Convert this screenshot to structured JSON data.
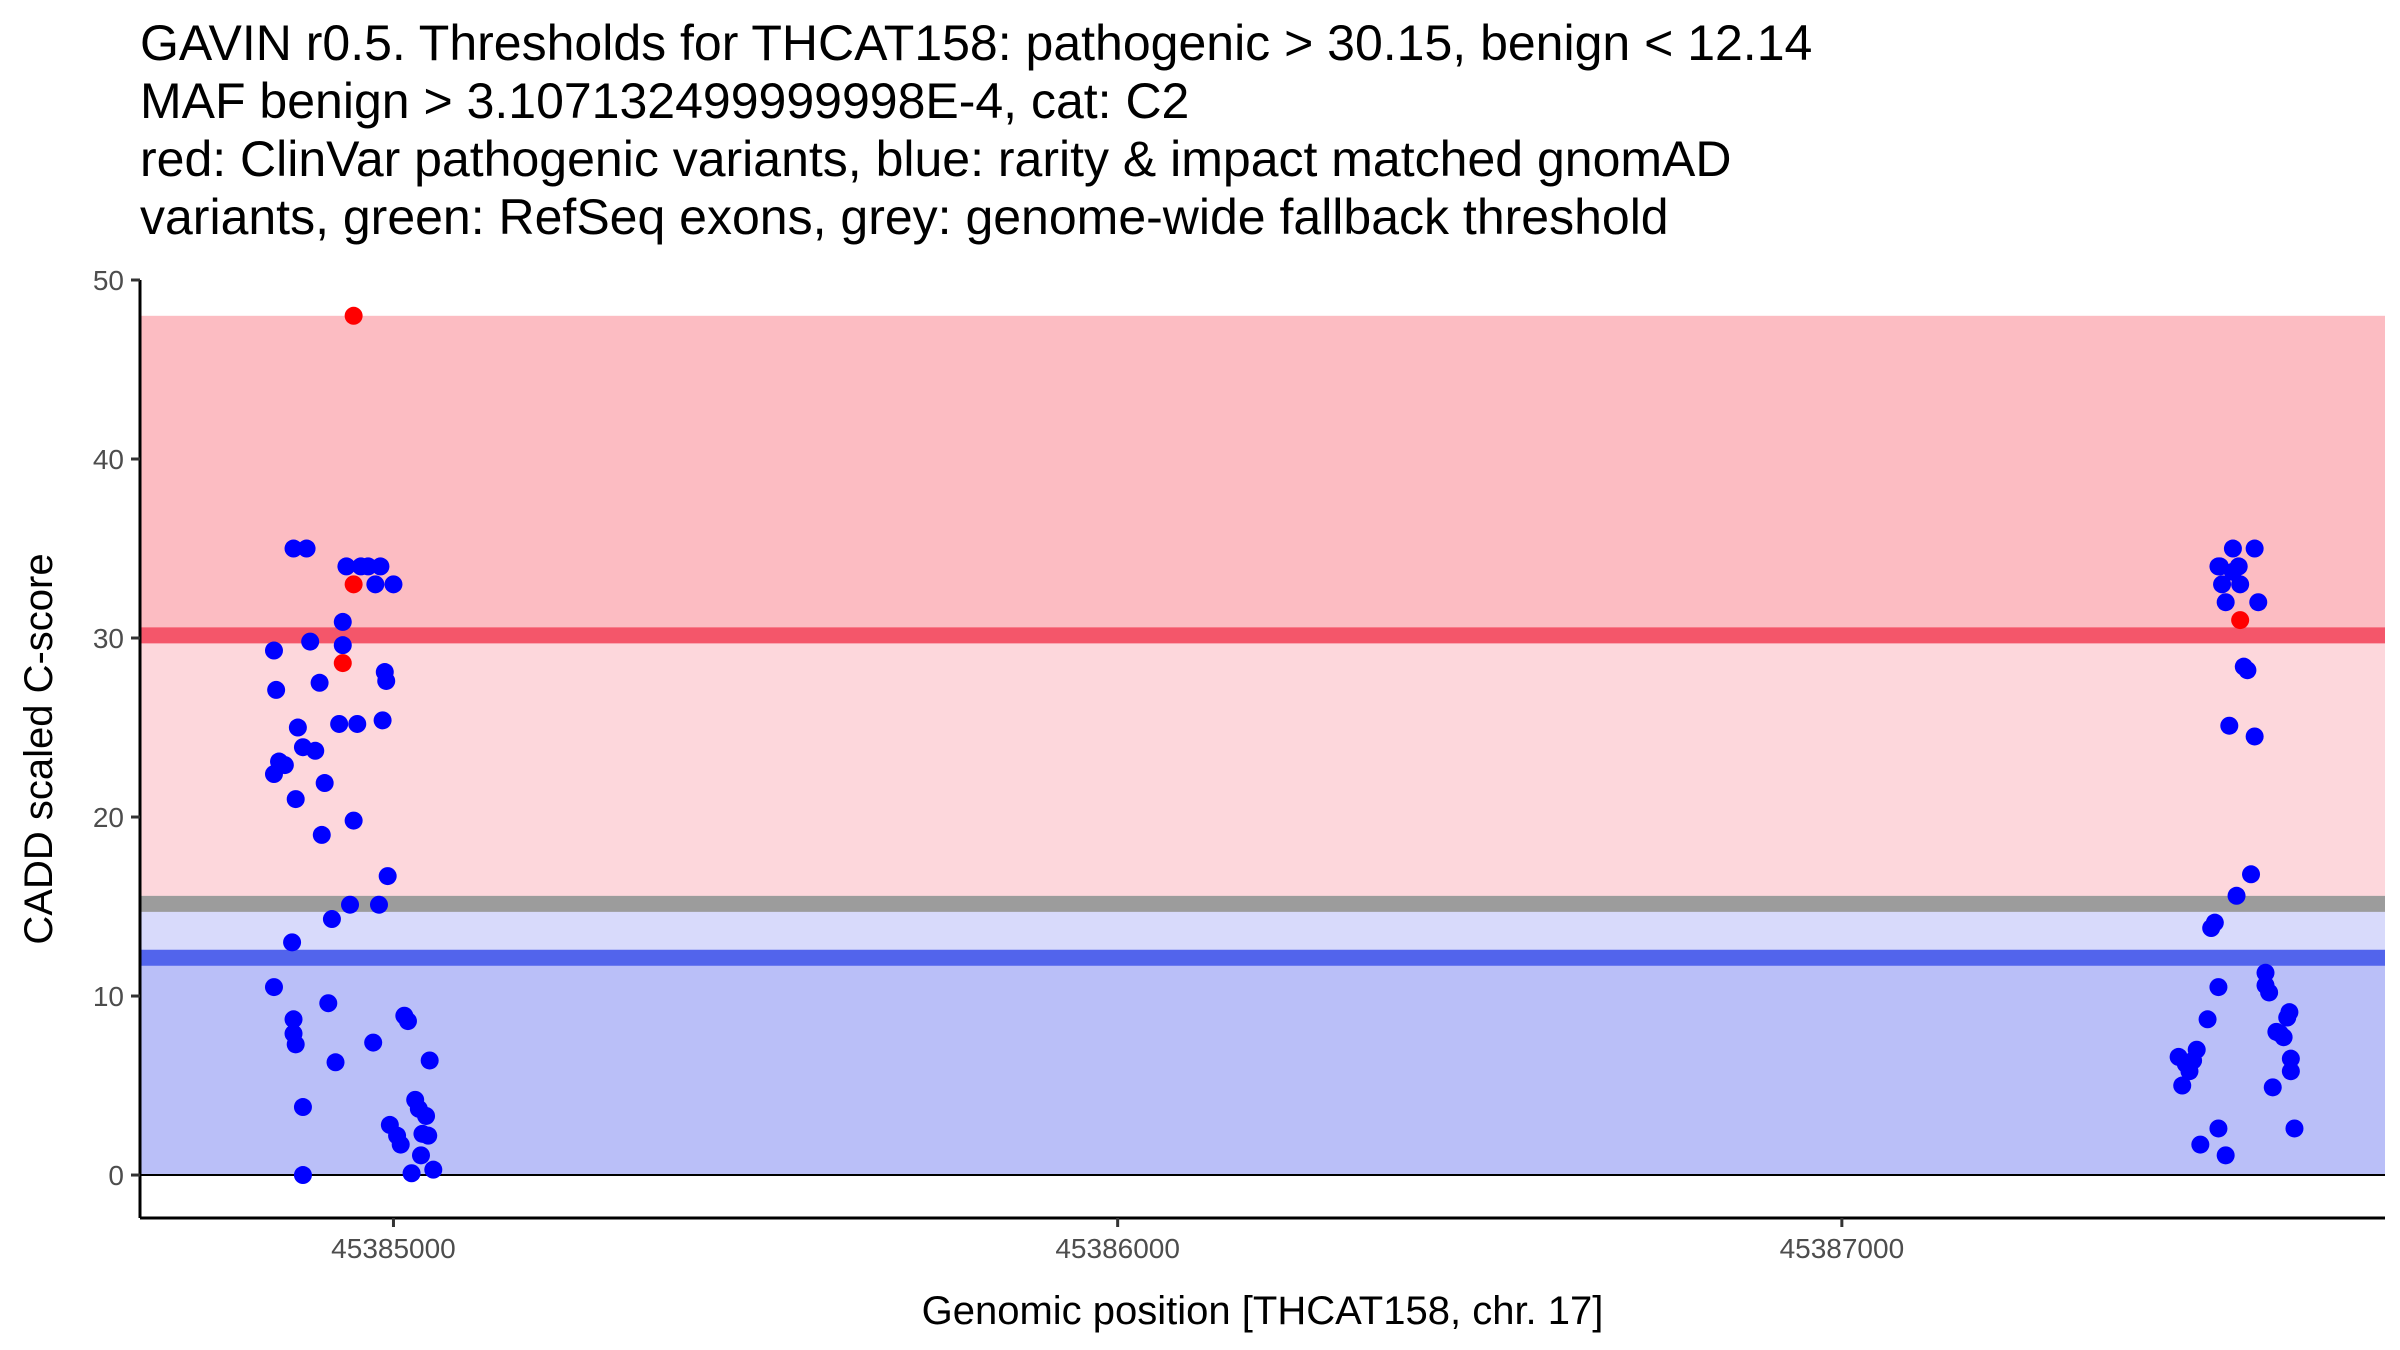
{
  "title_lines": [
    "GAVIN r0.5. Thresholds for THCAT158: pathogenic > 30.15, benign < 12.14",
    "MAF benign > 3.107132499999998E-4, cat: C2",
    "red: ClinVar pathogenic variants, blue: rarity & impact matched gnomAD",
    "variants, green: RefSeq exons, grey: genome-wide fallback threshold"
  ],
  "chart_data": {
    "type": "scatter",
    "xlabel": "Genomic position [THCAT158, chr. 17]",
    "ylabel": "CADD scaled C-score",
    "xlim": [
      45384650,
      45387750
    ],
    "ylim": [
      -2.4,
      50
    ],
    "x_ticks": [
      45385000,
      45386000,
      45387000
    ],
    "y_ticks": [
      0,
      10,
      20,
      30,
      40,
      50
    ],
    "grid": false,
    "bands": [
      {
        "name": "pathogenic range",
        "y0": 30.15,
        "y1": 48,
        "color": "#fcbcc2"
      },
      {
        "name": "intermediate pathogenic",
        "y0": 15.15,
        "y1": 30.15,
        "color": "#fdd7dc"
      },
      {
        "name": "intermediate benign",
        "y0": 12.14,
        "y1": 15.15,
        "color": "#d8dafb"
      },
      {
        "name": "benign range",
        "y0": 0,
        "y1": 12.14,
        "color": "#babff8"
      }
    ],
    "thresholds": [
      {
        "name": "pathogenic threshold",
        "y": 30.15,
        "color": "#f4566a"
      },
      {
        "name": "genome-wide fallback threshold",
        "y": 15.15,
        "color": "#9c9c9c"
      },
      {
        "name": "benign threshold",
        "y": 12.14,
        "color": "#5264ec"
      }
    ],
    "baseline": 0,
    "series": [
      {
        "name": "gnomAD",
        "color": "#0000ff",
        "points": [
          [
            45384835,
            29.3
          ],
          [
            45384838,
            27.1
          ],
          [
            45384835,
            22.4
          ],
          [
            45384842,
            23.1
          ],
          [
            45384850,
            22.9
          ],
          [
            45384860,
            13.0
          ],
          [
            45384862,
            8.7
          ],
          [
            45384865,
            21.0
          ],
          [
            45384868,
            25.0
          ],
          [
            45384875,
            23.9
          ],
          [
            45384885,
            29.8
          ],
          [
            45384892,
            23.7
          ],
          [
            45384898,
            27.5
          ],
          [
            45384901,
            19.0
          ],
          [
            45384905,
            21.9
          ],
          [
            45384910,
            9.6
          ],
          [
            45384915,
            14.3
          ],
          [
            45384920,
            6.3
          ],
          [
            45384925,
            25.2
          ],
          [
            45384930,
            29.6
          ],
          [
            45384930,
            30.9
          ],
          [
            45384935,
            34.0
          ],
          [
            45384940,
            15.1
          ],
          [
            45384945,
            19.8
          ],
          [
            45384950,
            25.2
          ],
          [
            45384955,
            34.0
          ],
          [
            45384965,
            34.0
          ],
          [
            45384972,
            7.4
          ],
          [
            45384975,
            33.0
          ],
          [
            45384980,
            15.1
          ],
          [
            45384982,
            34.0
          ],
          [
            45384985,
            25.4
          ],
          [
            45384988,
            28.1
          ],
          [
            45384990,
            27.6
          ],
          [
            45384992,
            16.7
          ],
          [
            45384995,
            2.8
          ],
          [
            45385005,
            2.2
          ],
          [
            45385010,
            1.7
          ],
          [
            45385015,
            8.9
          ],
          [
            45385020,
            8.6
          ],
          [
            45385025,
            0.1
          ],
          [
            45385030,
            4.2
          ],
          [
            45385035,
            3.7
          ],
          [
            45385038,
            1.1
          ],
          [
            45385040,
            2.3
          ],
          [
            45385045,
            3.3
          ],
          [
            45385048,
            2.2
          ],
          [
            45385050,
            6.4
          ],
          [
            45385055,
            0.3
          ],
          [
            45384862,
            35.0
          ],
          [
            45384880,
            35.0
          ],
          [
            45385000,
            33.0
          ],
          [
            45384862,
            7.9
          ],
          [
            45384865,
            7.3
          ],
          [
            45384875,
            3.8
          ],
          [
            45384875,
            0.0
          ],
          [
            45384835,
            10.5
          ],
          [
            45387465,
            6.6
          ],
          [
            45387470,
            5.0
          ],
          [
            45387475,
            6.2
          ],
          [
            45387480,
            5.8
          ],
          [
            45387485,
            6.4
          ],
          [
            45387490,
            7.0
          ],
          [
            45387495,
            1.7
          ],
          [
            45387505,
            8.7
          ],
          [
            45387510,
            13.8
          ],
          [
            45387515,
            14.1
          ],
          [
            45387520,
            2.6
          ],
          [
            45387520,
            10.5
          ],
          [
            45387522,
            34.0
          ],
          [
            45387525,
            33.0
          ],
          [
            45387530,
            32.0
          ],
          [
            45387530,
            1.1
          ],
          [
            45387535,
            25.1
          ],
          [
            45387540,
            33.7
          ],
          [
            45387540,
            35.0
          ],
          [
            45387545,
            15.6
          ],
          [
            45387548,
            34.0
          ],
          [
            45387550,
            33.0
          ],
          [
            45387555,
            28.4
          ],
          [
            45387560,
            28.2
          ],
          [
            45387565,
            16.8
          ],
          [
            45387570,
            24.5
          ],
          [
            45387570,
            35.0
          ],
          [
            45387575,
            32.0
          ],
          [
            45387585,
            11.3
          ],
          [
            45387585,
            10.6
          ],
          [
            45387590,
            10.2
          ],
          [
            45387595,
            4.9
          ],
          [
            45387600,
            8.0
          ],
          [
            45387605,
            7.9
          ],
          [
            45387610,
            7.7
          ],
          [
            45387615,
            8.8
          ],
          [
            45387618,
            9.1
          ],
          [
            45387620,
            6.5
          ],
          [
            45387620,
            5.8
          ],
          [
            45387625,
            2.6
          ],
          [
            45387520,
            34.0
          ]
        ]
      },
      {
        "name": "ClinVar",
        "color": "#ff0000",
        "points": [
          [
            45384945,
            48.0
          ],
          [
            45384945,
            33.0
          ],
          [
            45384930,
            28.6
          ],
          [
            45387550,
            31.0
          ]
        ]
      }
    ]
  }
}
